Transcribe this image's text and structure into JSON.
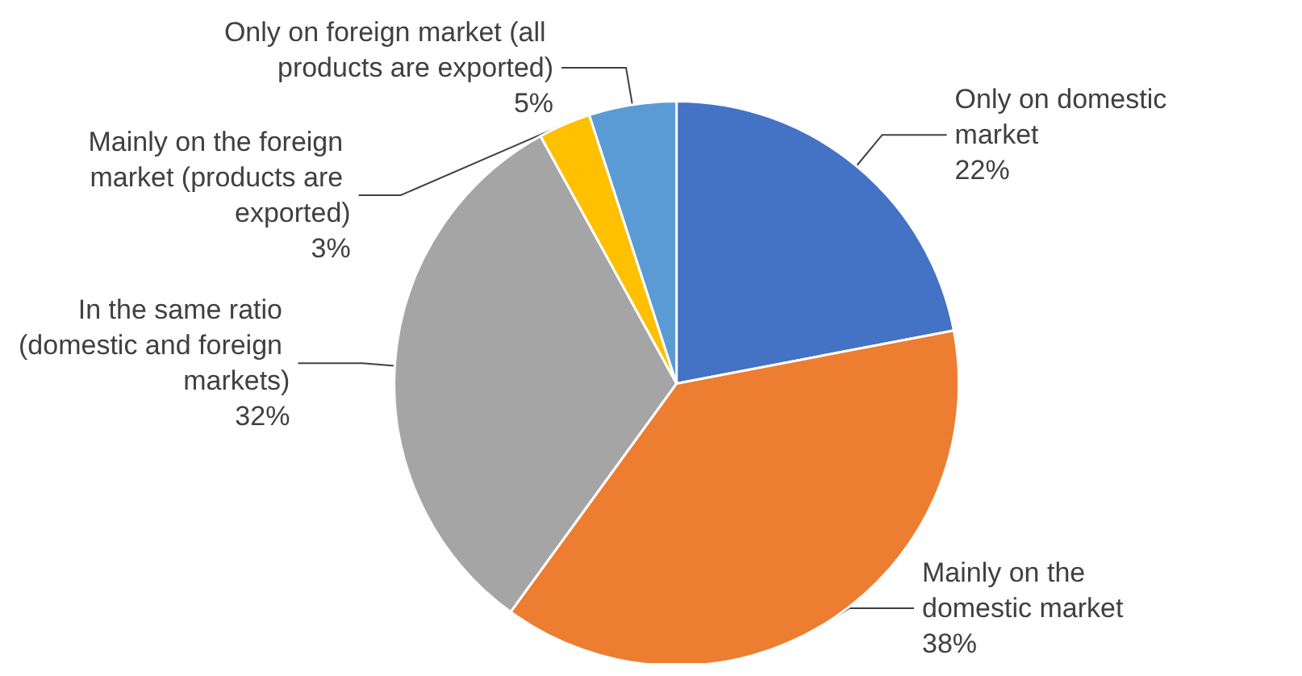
{
  "chart_data": {
    "type": "pie",
    "categories": [
      "Only on domestic market",
      "Mainly on the domestic market",
      "In the same ratio (domestic and foreign markets)",
      "Mainly on the foreign market (products are exported)",
      "Only on foreign market (all products are exported)"
    ],
    "values": [
      22,
      38,
      32,
      3,
      5
    ],
    "colors": [
      "#4472c4",
      "#ed7d31",
      "#a5a5a5",
      "#ffc000",
      "#5b9bd5"
    ],
    "value_labels": [
      "22%",
      "38%",
      "32%",
      "3%",
      "5%"
    ],
    "legend": false
  }
}
